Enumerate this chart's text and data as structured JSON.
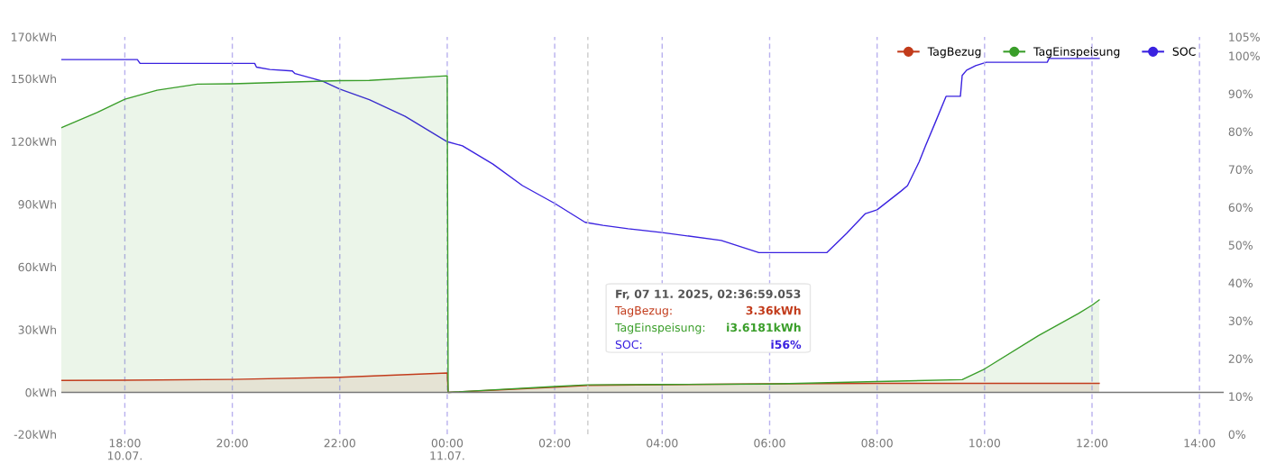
{
  "chart_data": {
    "type": "area",
    "series": [
      {
        "name": "TagBezug",
        "color": "#c23b1b",
        "x": [
          "2025-07-10T16:49",
          "2025-07-10T18:00",
          "2025-07-10T20:00",
          "2025-07-10T22:00",
          "2025-07-11T00:00",
          "2025-07-11T00:01",
          "2025-07-11T02:00",
          "2025-07-11T02:37",
          "2025-07-11T04:00",
          "2025-07-11T06:00",
          "2025-07-11T08:00",
          "2025-07-11T10:00",
          "2025-07-11T12:08"
        ],
        "values": [
          5.7,
          5.8,
          6.2,
          7.2,
          9.3,
          0,
          2.5,
          3.36,
          3.7,
          4.1,
          4.3,
          4.3,
          4.3
        ]
      },
      {
        "name": "TagEinspeisung",
        "color": "#3a9e2a",
        "x": [
          "2025-07-10T16:49",
          "2025-07-10T17:29",
          "2025-07-10T18:00",
          "2025-07-10T18:36",
          "2025-07-10T19:21",
          "2025-07-10T20:00",
          "2025-07-10T22:00",
          "2025-07-10T22:33",
          "2025-07-11T00:00",
          "2025-07-11T00:01",
          "2025-07-11T02:00",
          "2025-07-11T02:37",
          "2025-07-11T04:00",
          "2025-07-11T06:00",
          "2025-07-11T08:00",
          "2025-07-11T09:35",
          "2025-07-11T10:00",
          "2025-07-11T11:00",
          "2025-07-11T11:45",
          "2025-07-11T12:00",
          "2025-07-11T12:08"
        ],
        "values": [
          126.6,
          133.8,
          140.2,
          144.5,
          147.4,
          147.6,
          149.1,
          149.2,
          151.4,
          0,
          2.8,
          3.6181,
          3.8,
          4.0,
          5.2,
          6.1,
          11.2,
          27.1,
          37.8,
          41.7,
          44.2
        ]
      },
      {
        "name": "SOC",
        "color": "#3a22e0",
        "type": "line",
        "axis": "y2",
        "x": [
          "2025-07-10T16:49",
          "2025-07-10T18:14",
          "2025-07-10T18:17",
          "2025-07-10T20:25",
          "2025-07-10T20:27",
          "2025-07-10T20:42",
          "2025-07-10T21:07",
          "2025-07-10T21:10",
          "2025-07-10T21:30",
          "2025-07-10T21:42",
          "2025-07-10T22:00",
          "2025-07-10T22:33",
          "2025-07-10T23:13",
          "2025-07-11T00:00",
          "2025-07-11T00:17",
          "2025-07-11T00:51",
          "2025-07-11T01:24",
          "2025-07-11T02:00",
          "2025-07-11T02:34",
          "2025-07-11T02:54",
          "2025-07-11T03:22",
          "2025-07-11T04:00",
          "2025-07-11T05:06",
          "2025-07-11T05:48",
          "2025-07-11T07:04",
          "2025-07-11T07:26",
          "2025-07-11T07:47",
          "2025-07-11T08:00",
          "2025-07-11T08:27",
          "2025-07-11T08:34",
          "2025-07-11T08:47",
          "2025-07-11T08:54",
          "2025-07-11T09:05",
          "2025-07-11T09:17",
          "2025-07-11T09:33",
          "2025-07-11T09:35",
          "2025-07-11T09:40",
          "2025-07-11T09:50",
          "2025-07-11T10:02",
          "2025-07-11T11:10",
          "2025-07-11T11:12",
          "2025-07-11T12:08"
        ],
        "values": [
          99,
          99,
          98,
          98,
          97,
          96.4,
          96,
          95.3,
          94,
          93.2,
          91.2,
          88.4,
          84,
          77.3,
          76.2,
          71.4,
          65.7,
          61,
          56,
          55.2,
          54.3,
          53.3,
          51.2,
          48,
          48,
          53.1,
          58.3,
          59.3,
          64.3,
          65.7,
          72,
          76.2,
          82.4,
          89.3,
          89.3,
          94.8,
          96.2,
          97.4,
          98.3,
          98.3,
          99.3,
          99.3
        ]
      }
    ],
    "xlim": [
      "2025-07-10T16:49",
      "2025-07-11T14:27"
    ],
    "xticks": [
      {
        "value": "2025-07-10T18:00",
        "label": "18:00\n10.07."
      },
      {
        "value": "2025-07-10T20:00",
        "label": "20:00"
      },
      {
        "value": "2025-07-10T22:00",
        "label": "22:00"
      },
      {
        "value": "2025-07-11T00:00",
        "label": "00:00\n11.07."
      },
      {
        "value": "2025-07-11T02:00",
        "label": "02:00"
      },
      {
        "value": "2025-07-11T04:00",
        "label": "04:00"
      },
      {
        "value": "2025-07-11T06:00",
        "label": "06:00"
      },
      {
        "value": "2025-07-11T08:00",
        "label": "08:00"
      },
      {
        "value": "2025-07-11T10:00",
        "label": "10:00"
      },
      {
        "value": "2025-07-11T12:00",
        "label": "12:00"
      },
      {
        "value": "2025-07-11T14:00",
        "label": "14:00"
      }
    ],
    "ylim": [
      -20,
      170
    ],
    "yticks": [
      {
        "value": -20,
        "label": "-20kWh"
      },
      {
        "value": 0,
        "label": "0kWh"
      },
      {
        "value": 30,
        "label": "30kWh"
      },
      {
        "value": 60,
        "label": "60kWh"
      },
      {
        "value": 90,
        "label": "90kWh"
      },
      {
        "value": 120,
        "label": "120kWh"
      },
      {
        "value": 150,
        "label": "150kWh"
      },
      {
        "value": 170,
        "label": "170kWh"
      }
    ],
    "y2lim": [
      0,
      105
    ],
    "y2ticks": [
      {
        "value": 0,
        "label": "0%"
      },
      {
        "value": 10,
        "label": "10%"
      },
      {
        "value": 20,
        "label": "20%"
      },
      {
        "value": 30,
        "label": "30%"
      },
      {
        "value": 40,
        "label": "40%"
      },
      {
        "value": 50,
        "label": "50%"
      },
      {
        "value": 60,
        "label": "60%"
      },
      {
        "value": 70,
        "label": "70%"
      },
      {
        "value": 80,
        "label": "80%"
      },
      {
        "value": 90,
        "label": "90%"
      },
      {
        "value": 100,
        "label": "100%"
      },
      {
        "value": 105,
        "label": "105%"
      }
    ],
    "ref_lines": [
      {
        "axis": "y",
        "value": 0,
        "color": "#777777",
        "line_style": "solid"
      },
      {
        "axis": "x",
        "value": "2025-07-11T02:37",
        "color": "#cccccc",
        "line_style": "dashed"
      }
    ],
    "annotations": [
      "Fr, 07 11. 2025, 02:36:59.053",
      "TagBezug:",
      "3.36kWh",
      "TagEinspeisung:",
      "i3.6181kWh",
      "SOC:",
      "i56%"
    ],
    "grid": "x",
    "legend": "top right"
  }
}
